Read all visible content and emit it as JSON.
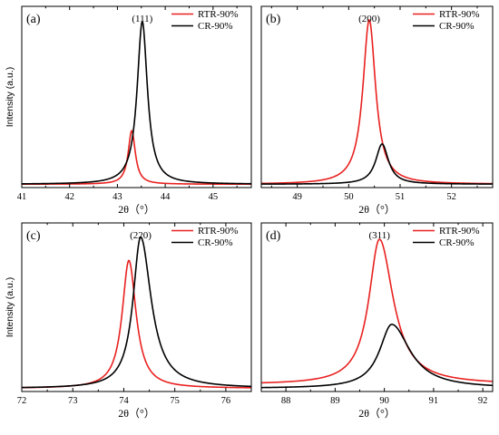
{
  "chart_data": [
    {
      "type": "line",
      "panel_label": "(a)",
      "peak_label": "(111)",
      "xlabel": "2θ（°）",
      "ylabel": "Intensity (a.u.)",
      "xlim": [
        41,
        45.8
      ],
      "xticks": [
        41,
        42,
        43,
        44,
        45
      ],
      "ylim": [
        0,
        1.08
      ],
      "legend_position": "top-right",
      "series": [
        {
          "name": "RTR-90%",
          "color": "#e8211f",
          "baseline": 0.02,
          "peak_x": 43.3,
          "amplitude": 0.32,
          "hwhm_left": 0.09,
          "hwhm_right": 0.09
        },
        {
          "name": "CR-90%",
          "color": "#000000",
          "baseline": 0.02,
          "peak_x": 43.52,
          "amplitude": 0.97,
          "hwhm_left": 0.13,
          "hwhm_right": 0.13
        }
      ]
    },
    {
      "type": "line",
      "panel_label": "(b)",
      "peak_label": "(200)",
      "xlabel": "2θ（°）",
      "ylabel": "",
      "xlim": [
        48.3,
        52.8
      ],
      "xticks": [
        49,
        50,
        51,
        52
      ],
      "ylim": [
        0,
        1.08
      ],
      "legend_position": "top-right",
      "series": [
        {
          "name": "RTR-90%",
          "color": "#e8211f",
          "baseline": 0.02,
          "peak_x": 50.4,
          "amplitude": 0.98,
          "hwhm_left": 0.15,
          "hwhm_right": 0.15
        },
        {
          "name": "CR-90%",
          "color": "#000000",
          "baseline": 0.02,
          "peak_x": 50.65,
          "amplitude": 0.24,
          "hwhm_left": 0.15,
          "hwhm_right": 0.15
        }
      ]
    },
    {
      "type": "line",
      "panel_label": "(c)",
      "peak_label": "(220)",
      "xlabel": "2θ（°）",
      "ylabel": "Intensity (a.u.)",
      "xlim": [
        72,
        76.5
      ],
      "xticks": [
        72,
        73,
        74,
        75,
        76
      ],
      "ylim": [
        0,
        1.08
      ],
      "legend_position": "top-right",
      "series": [
        {
          "name": "RTR-90%",
          "color": "#e8211f",
          "baseline": 0.02,
          "peak_x": 74.1,
          "amplitude": 0.82,
          "hwhm_left": 0.16,
          "hwhm_right": 0.17
        },
        {
          "name": "CR-90%",
          "color": "#000000",
          "baseline": 0.02,
          "peak_x": 74.33,
          "amplitude": 0.97,
          "hwhm_left": 0.18,
          "hwhm_right": 0.25
        }
      ]
    },
    {
      "type": "line",
      "panel_label": "(d)",
      "peak_label": "(311)",
      "xlabel": "2θ（°）",
      "ylabel": "",
      "xlim": [
        87.5,
        92.2
      ],
      "xticks": [
        88,
        89,
        90,
        91,
        92
      ],
      "ylim": [
        0,
        1.08
      ],
      "legend_position": "top-right",
      "series": [
        {
          "name": "RTR-90%",
          "color": "#e8211f",
          "baseline": 0.045,
          "peak_x": 89.9,
          "amplitude": 0.93,
          "hwhm_left": 0.26,
          "hwhm_right": 0.34
        },
        {
          "name": "CR-90%",
          "color": "#000000",
          "baseline": 0.02,
          "peak_x": 90.15,
          "amplitude": 0.41,
          "hwhm_left": 0.3,
          "hwhm_right": 0.45
        }
      ]
    }
  ]
}
